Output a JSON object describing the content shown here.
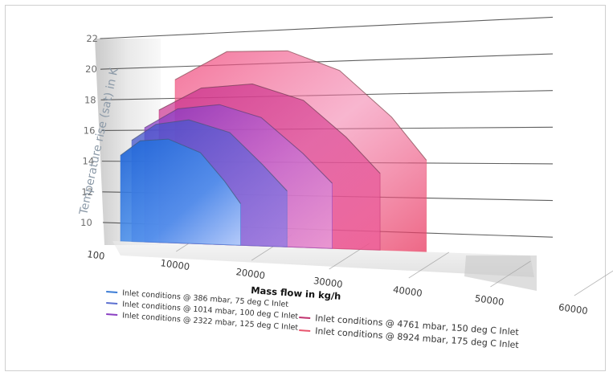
{
  "chart_data": {
    "type": "area",
    "ylabel": "Temperature rise (sat) in K",
    "xlabel": "Mass flow in kg/h",
    "y_ticks": [
      "10",
      "12",
      "14",
      "16",
      "18",
      "20",
      "22"
    ],
    "ylim": [
      9,
      22
    ],
    "x_ticks": [
      "100",
      "10000",
      "20000",
      "30000",
      "40000",
      "50000",
      "60000"
    ],
    "xlim": [
      100,
      60000
    ],
    "grid": true,
    "legend_position": "bottom",
    "series": [
      {
        "name": "Inlet conditions @ 386 mbar, 75 deg C Inlet",
        "color": "#3a7bd5",
        "x": [
          100,
          5000,
          12000,
          20000,
          26000,
          30000
        ],
        "y": [
          15.2,
          16.3,
          16.5,
          15.6,
          13.6,
          12.0
        ]
      },
      {
        "name": "Inlet conditions @ 1014 mbar, 100 deg C Inlet",
        "color": "#5b6fd0",
        "x": [
          100,
          6000,
          14000,
          24000,
          32000,
          38000
        ],
        "y": [
          16.0,
          17.2,
          17.6,
          16.8,
          14.6,
          12.8
        ]
      },
      {
        "name": "Inlet conditions @ 2322 mbar, 125 deg C Inlet",
        "color": "#8a3fc2",
        "x": [
          100,
          8000,
          18000,
          28000,
          38000,
          45000
        ],
        "y": [
          16.6,
          18.0,
          18.4,
          17.6,
          15.2,
          13.2
        ]
      },
      {
        "name": "Inlet conditions @ 4761 mbar, 150 deg C Inlet",
        "color": "#c0326e",
        "x": [
          100,
          10000,
          22000,
          34000,
          44000,
          52000
        ],
        "y": [
          17.6,
          19.2,
          19.6,
          18.6,
          16.2,
          13.8
        ]
      },
      {
        "name": "Inlet conditions @ 8924 mbar, 175 deg C Inlet",
        "color": "#e8556e",
        "x": [
          100,
          12000,
          26000,
          38000,
          50000,
          58000
        ],
        "y": [
          19.4,
          21.4,
          21.6,
          20.4,
          17.4,
          14.6
        ]
      }
    ]
  }
}
